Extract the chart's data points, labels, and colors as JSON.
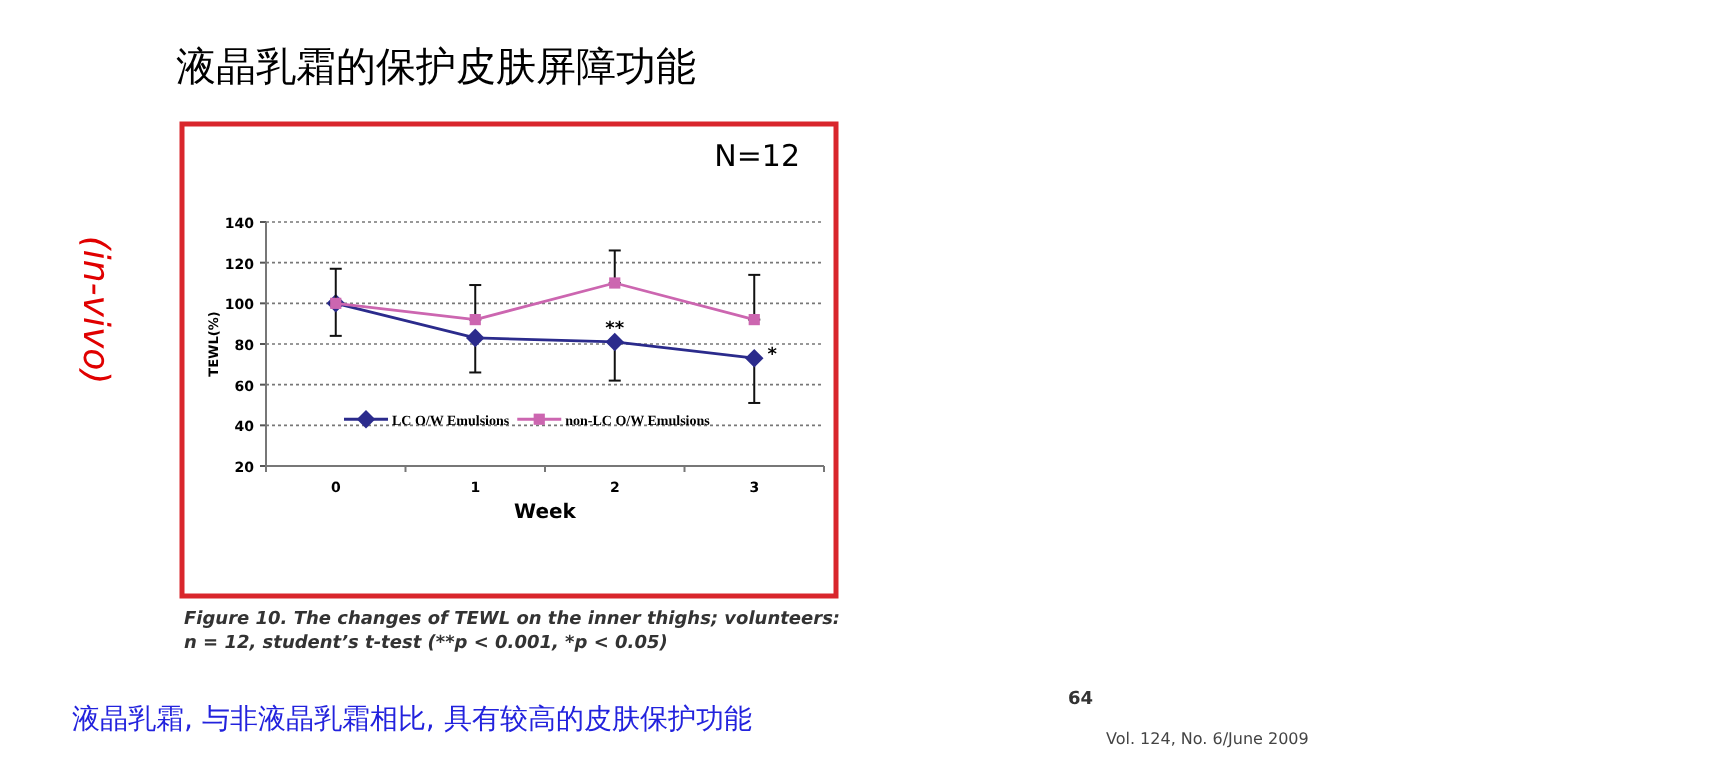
{
  "chart_data": {
    "type": "line",
    "title": "液晶乳霜的保护皮肤屏障功能",
    "xlabel": "Week",
    "ylabel": "TEWL(%)",
    "categories": [
      "0",
      "1",
      "2",
      "3"
    ],
    "series": [
      {
        "name": "LC O/W Emulsions",
        "color": "#2b2b8c",
        "marker": "diamond",
        "values": [
          100,
          83,
          81,
          73
        ],
        "errors": [
          [
            84,
            100
          ],
          [
            66,
            83
          ],
          [
            62,
            81
          ],
          [
            51,
            73
          ]
        ]
      },
      {
        "name": "non-LC O/W Emulsions",
        "color": "#cc66b0",
        "marker": "square",
        "values": [
          100,
          92,
          110,
          92
        ],
        "errors": [
          [
            100,
            117
          ],
          [
            92,
            109
          ],
          [
            110,
            126
          ],
          [
            92,
            114
          ]
        ]
      }
    ],
    "ylim": [
      20,
      140
    ],
    "yticks": [
      20,
      40,
      60,
      80,
      100,
      120,
      140
    ],
    "grid": "y",
    "legend": "bottom",
    "annotations": [
      {
        "text": "**",
        "x": "2",
        "y": 88
      },
      {
        "text": "*",
        "x": "3",
        "y": 75
      },
      "N=12",
      "(in-vivo)",
      "Figure 10. The changes of TEWL on the inner thighs; volunteers: n = 12, student’s t-test (**p < 0.001, *p < 0.05)",
      "液晶乳霜, 与非液晶乳霜相比, 具有较高的皮肤保护功能",
      "64",
      "Vol. 124, No. 6/June 2009"
    ]
  }
}
